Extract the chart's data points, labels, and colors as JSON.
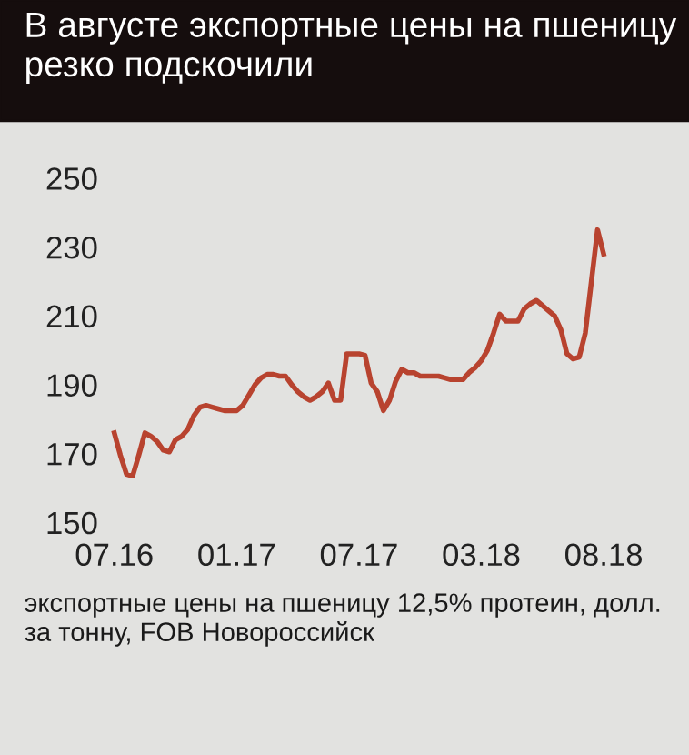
{
  "chart_data": {
    "type": "line",
    "title": "В августе экспортные цены на пшеницу резко подскочили",
    "annotations": [
      "экспортные цены на пшеницу 12,5% протеин, долл. за тонну, FOB Новороссийск"
    ],
    "categories": [
      "07.16",
      null,
      null,
      null,
      null,
      null,
      null,
      null,
      null,
      null,
      null,
      null,
      null,
      null,
      null,
      null,
      null,
      null,
      null,
      null,
      "01.17",
      null,
      null,
      null,
      null,
      null,
      null,
      null,
      null,
      null,
      null,
      null,
      null,
      null,
      null,
      null,
      null,
      null,
      null,
      null,
      "07.17",
      null,
      null,
      null,
      null,
      null,
      null,
      null,
      null,
      null,
      null,
      null,
      null,
      null,
      null,
      null,
      null,
      null,
      null,
      null,
      "03.18",
      null,
      null,
      null,
      null,
      null,
      null,
      null,
      null,
      null,
      null,
      null,
      null,
      null,
      null,
      null,
      null,
      null,
      null,
      null,
      "08.18"
    ],
    "series": [
      {
        "color": "#b8432f",
        "values": [
          176,
          169.5,
          164,
          163.5,
          169.5,
          176,
          175,
          173.5,
          171,
          170.5,
          174,
          175,
          177,
          181,
          183.5,
          184,
          183.5,
          183,
          182.5,
          182.5,
          182.5,
          184,
          187,
          190,
          192,
          193,
          193,
          192.5,
          192.5,
          190,
          188,
          186.5,
          185.5,
          186.5,
          188,
          190.5,
          185.5,
          185.5,
          199,
          199,
          199,
          198.5,
          190.5,
          188,
          182.5,
          185.5,
          191,
          194.5,
          193.5,
          193.5,
          192.5,
          192.5,
          192.5,
          192.5,
          192,
          191.5,
          191.5,
          191.5,
          193.5,
          195,
          197,
          200,
          205,
          210.5,
          208.5,
          208.5,
          208.5,
          212,
          213.5,
          214.5,
          213,
          211.5,
          210,
          206,
          199,
          197.5,
          198,
          205,
          220,
          235,
          228
        ]
      }
    ],
    "ylim": [
      150,
      250
    ],
    "yticks": [
      150,
      170,
      190,
      210,
      230,
      250
    ],
    "grid": false,
    "legend": false,
    "marker": "none",
    "line_style": "solid"
  }
}
